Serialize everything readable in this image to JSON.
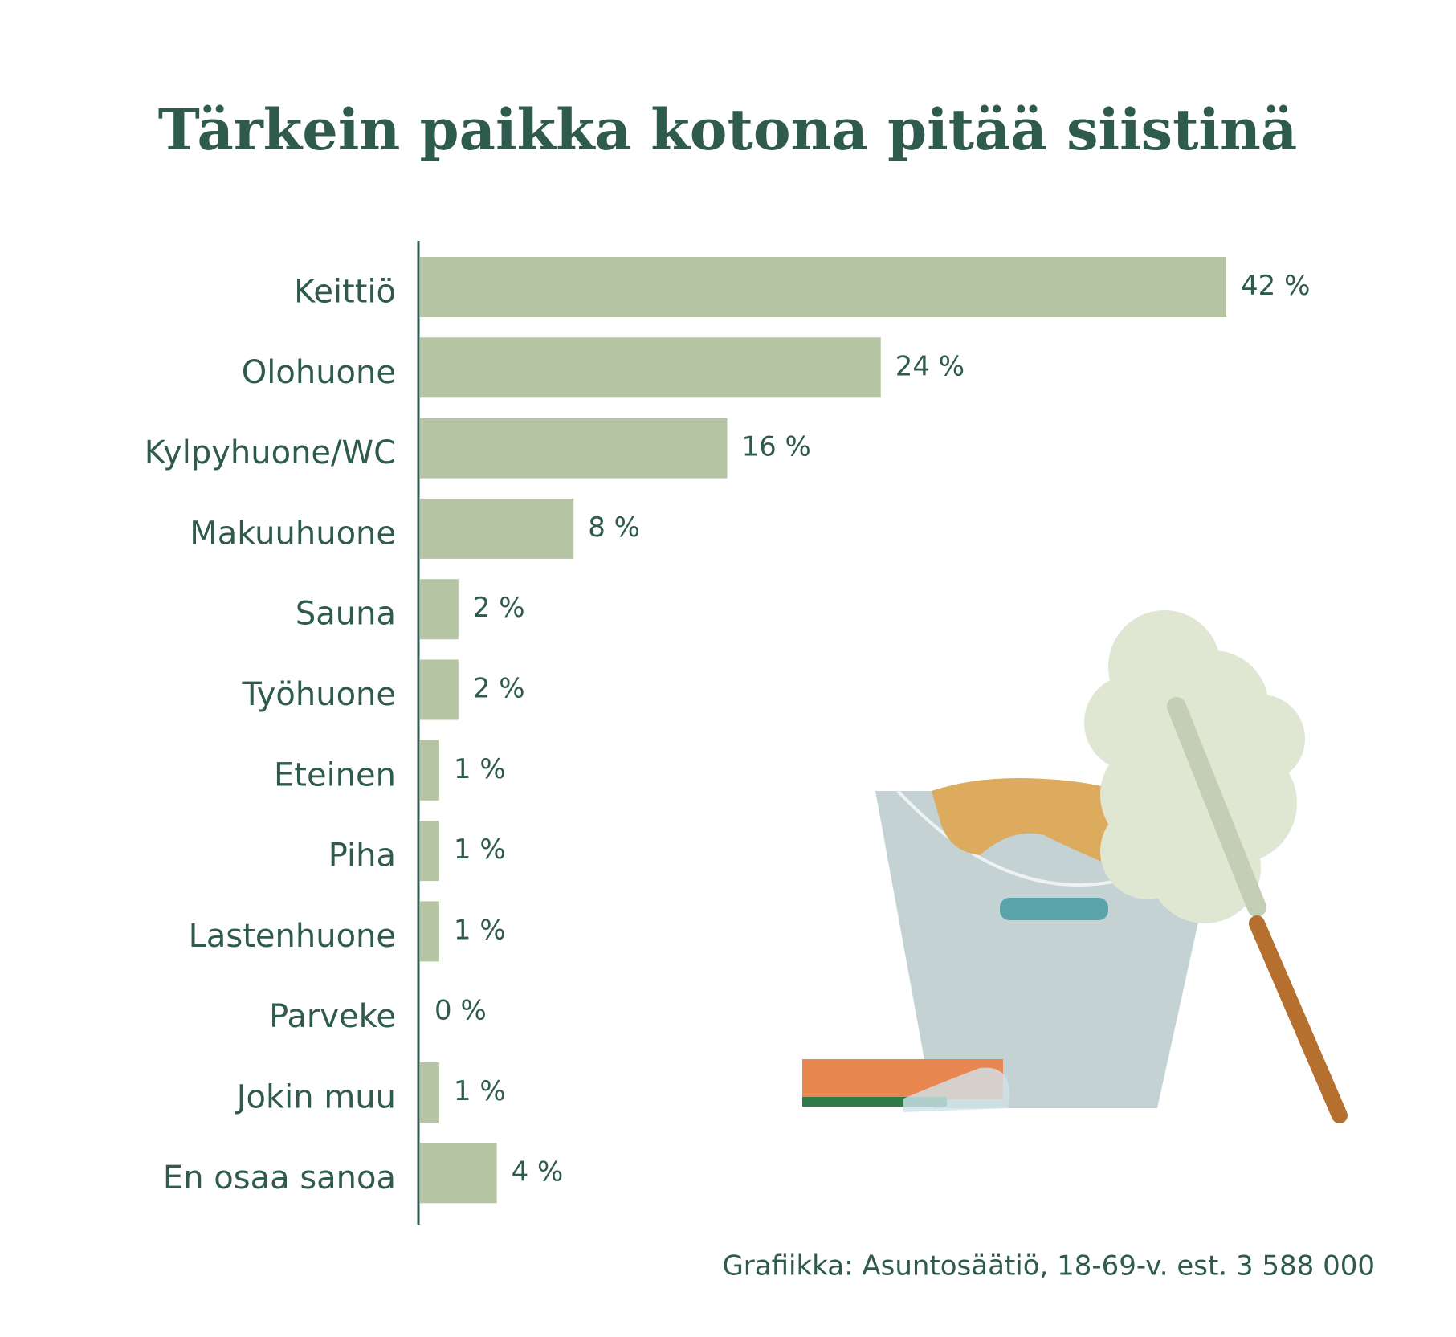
{
  "chart_data": {
    "type": "bar",
    "orientation": "horizontal",
    "title": "Tärkein paikka kotona pitää siistinä",
    "categories": [
      "Keittiö",
      "Olohuone",
      "Kylpyhuone/WC",
      "Makuuhuone",
      "Sauna",
      "Työhuone",
      "Eteinen",
      "Piha",
      "Lastenhuone",
      "Parveke",
      "Jokin muu",
      "En osaa sanoa"
    ],
    "values": [
      42,
      24,
      16,
      8,
      2,
      2,
      1,
      1,
      1,
      0,
      1,
      4
    ],
    "value_labels": [
      "42 %",
      "24 %",
      "16 %",
      "8 %",
      "2 %",
      "2 %",
      "1 %",
      "1 %",
      "1 %",
      "0 %",
      "1 %",
      "4 %"
    ],
    "color": "#b5c4a3",
    "caption": "Grafiikka: Asuntosäätiö, 18-69-v. est. 3 588 000"
  }
}
